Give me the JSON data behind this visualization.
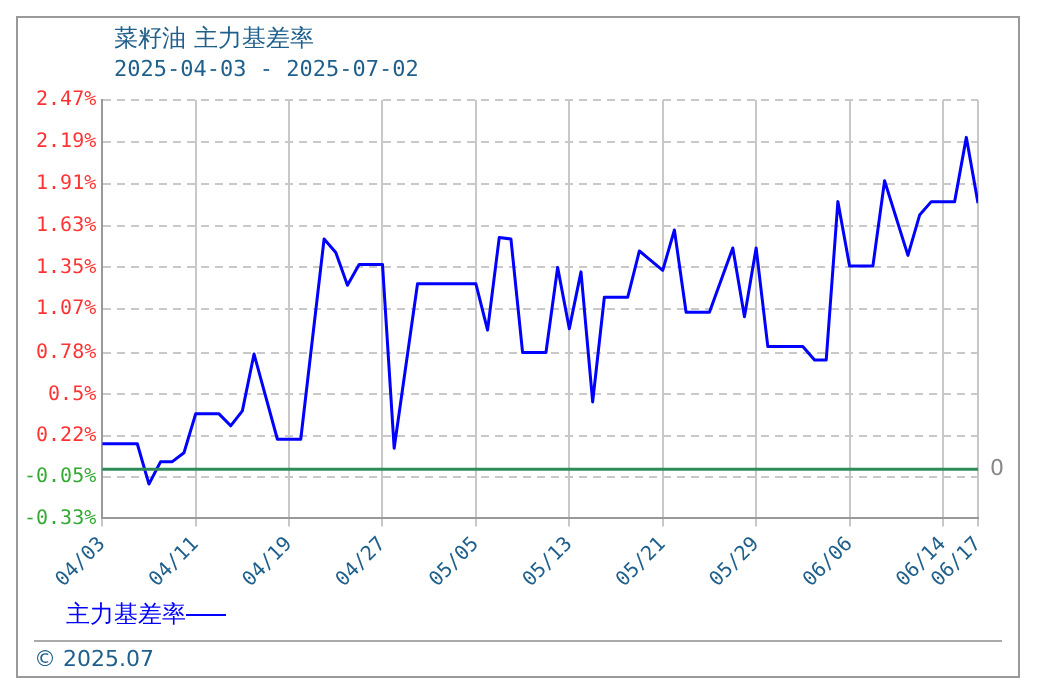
{
  "chart_data": {
    "type": "line",
    "title": "菜籽油  主力基差率",
    "subtitle": "2025-04-03 - 2025-07-02",
    "annotations": [
      "© 2025.07"
    ],
    "x": [
      "2025-04-03",
      "2025-04-06",
      "2025-04-07",
      "2025-04-08",
      "2025-04-09",
      "2025-04-10",
      "2025-04-11",
      "2025-04-13",
      "2025-04-14",
      "2025-04-15",
      "2025-04-16",
      "2025-04-18",
      "2025-04-20",
      "2025-04-22",
      "2025-04-23",
      "2025-04-24",
      "2025-04-25",
      "2025-04-27",
      "2025-04-28",
      "2025-04-30",
      "2025-05-05",
      "2025-05-06",
      "2025-05-07",
      "2025-05-08",
      "2025-05-09",
      "2025-05-11",
      "2025-05-12",
      "2025-05-13",
      "2025-05-14",
      "2025-05-15",
      "2025-05-16",
      "2025-05-18",
      "2025-05-19",
      "2025-05-21",
      "2025-05-22",
      "2025-05-23",
      "2025-05-25",
      "2025-05-27",
      "2025-05-28",
      "2025-05-29",
      "2025-05-30",
      "2025-06-02",
      "2025-06-03",
      "2025-06-04",
      "2025-06-05",
      "2025-06-06",
      "2025-06-08",
      "2025-06-09",
      "2025-06-11",
      "2025-06-12",
      "2025-06-13",
      "2025-06-15",
      "2025-06-16",
      "2025-06-17"
    ],
    "series": [
      {
        "name": "主力基差率",
        "color": "#0000ff",
        "values": [
          0.17,
          0.17,
          -0.1,
          0.05,
          0.05,
          0.11,
          0.37,
          0.37,
          0.29,
          0.39,
          0.77,
          0.2,
          0.2,
          1.54,
          1.45,
          1.23,
          1.37,
          1.37,
          0.14,
          1.24,
          1.24,
          0.93,
          1.55,
          1.54,
          0.78,
          0.78,
          1.35,
          0.94,
          1.32,
          0.45,
          1.15,
          1.15,
          1.46,
          1.33,
          1.6,
          1.05,
          1.05,
          1.48,
          1.02,
          1.48,
          0.82,
          0.82,
          0.73,
          0.73,
          1.79,
          1.36,
          1.36,
          1.93,
          1.43,
          1.7,
          1.79,
          1.79,
          2.22,
          1.78
        ]
      }
    ],
    "xlim": [
      "2025-04-03",
      "2025-06-17"
    ],
    "xticks": [
      {
        "value": "2025-04-03",
        "label": "04/03"
      },
      {
        "value": "2025-04-11",
        "label": "04/11"
      },
      {
        "value": "2025-04-19",
        "label": "04/19"
      },
      {
        "value": "2025-04-27",
        "label": "04/27"
      },
      {
        "value": "2025-05-05",
        "label": "05/05"
      },
      {
        "value": "2025-05-13",
        "label": "05/13"
      },
      {
        "value": "2025-05-21",
        "label": "05/21"
      },
      {
        "value": "2025-05-29",
        "label": "05/29"
      },
      {
        "value": "2025-06-06",
        "label": "06/06"
      },
      {
        "value": "2025-06-14",
        "label": "06/14"
      },
      {
        "value": "2025-06-17",
        "label": "06/17"
      }
    ],
    "ylim": [
      -0.33,
      2.47
    ],
    "yticks": [
      {
        "value": -0.33,
        "label": "-0.33%"
      },
      {
        "value": -0.05,
        "label": "-0.05%"
      },
      {
        "value": 0.22,
        "label": "0.22%"
      },
      {
        "value": 0.5,
        "label": "0.5%"
      },
      {
        "value": 0.78,
        "label": "0.78%"
      },
      {
        "value": 1.07,
        "label": "1.07%"
      },
      {
        "value": 1.35,
        "label": "1.35%"
      },
      {
        "value": 1.63,
        "label": "1.63%"
      },
      {
        "value": 1.91,
        "label": "1.91%"
      },
      {
        "value": 2.19,
        "label": "2.19%"
      },
      {
        "value": 2.47,
        "label": "2.47%"
      }
    ],
    "ref_lines": [
      {
        "axis": "y",
        "value": 0,
        "label": "0",
        "color": "#2e8b57"
      }
    ],
    "grid": true,
    "legend": "bottom left",
    "marker": "none",
    "line_style": "solid"
  }
}
